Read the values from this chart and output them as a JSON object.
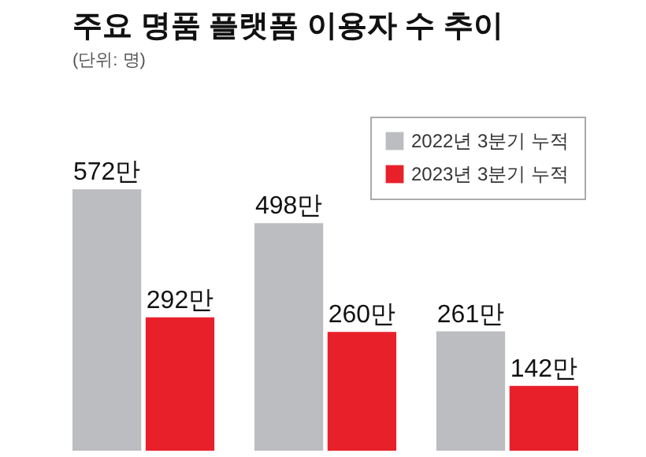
{
  "chart_data": {
    "type": "bar",
    "title": "주요 명품 플랫폼 이용자 수 추이",
    "subtitle": "(단위: 명)",
    "categories": [
      null,
      null,
      null
    ],
    "series": [
      {
        "name": "2022년 3분기 누적",
        "color": "#bcbdc0",
        "values": [
          572,
          498,
          261
        ],
        "value_labels": [
          "572만",
          "498만",
          "261만"
        ]
      },
      {
        "name": "2023년 3분기 누적",
        "color": "#e8202a",
        "values": [
          292,
          260,
          142
        ],
        "value_labels": [
          "292만",
          "260만",
          "142만"
        ]
      }
    ],
    "legend": "top right"
  }
}
